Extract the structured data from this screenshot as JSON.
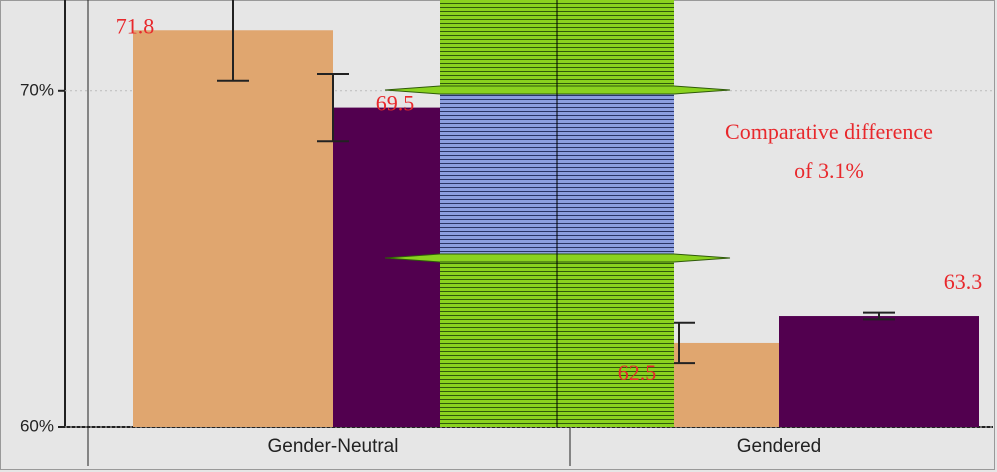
{
  "chart_data": {
    "type": "bar",
    "categories": [
      "Gender-Neutral",
      "Gendered"
    ],
    "series": [
      {
        "color": "#e0a66f",
        "values": [
          71.8,
          62.5
        ],
        "errors": [
          1.5,
          0.6
        ]
      },
      {
        "color": "#52004f",
        "values": [
          69.5,
          63.3
        ],
        "errors": [
          1.0,
          0.1
        ]
      }
    ],
    "ylim": [
      60,
      72.7
    ],
    "yticks": [
      {
        "value": 60,
        "label": "60%"
      },
      {
        "value": 70,
        "label": "70%"
      }
    ],
    "grid": true,
    "annotation": [
      "Comparative difference",
      "of 3.1%"
    ]
  }
}
